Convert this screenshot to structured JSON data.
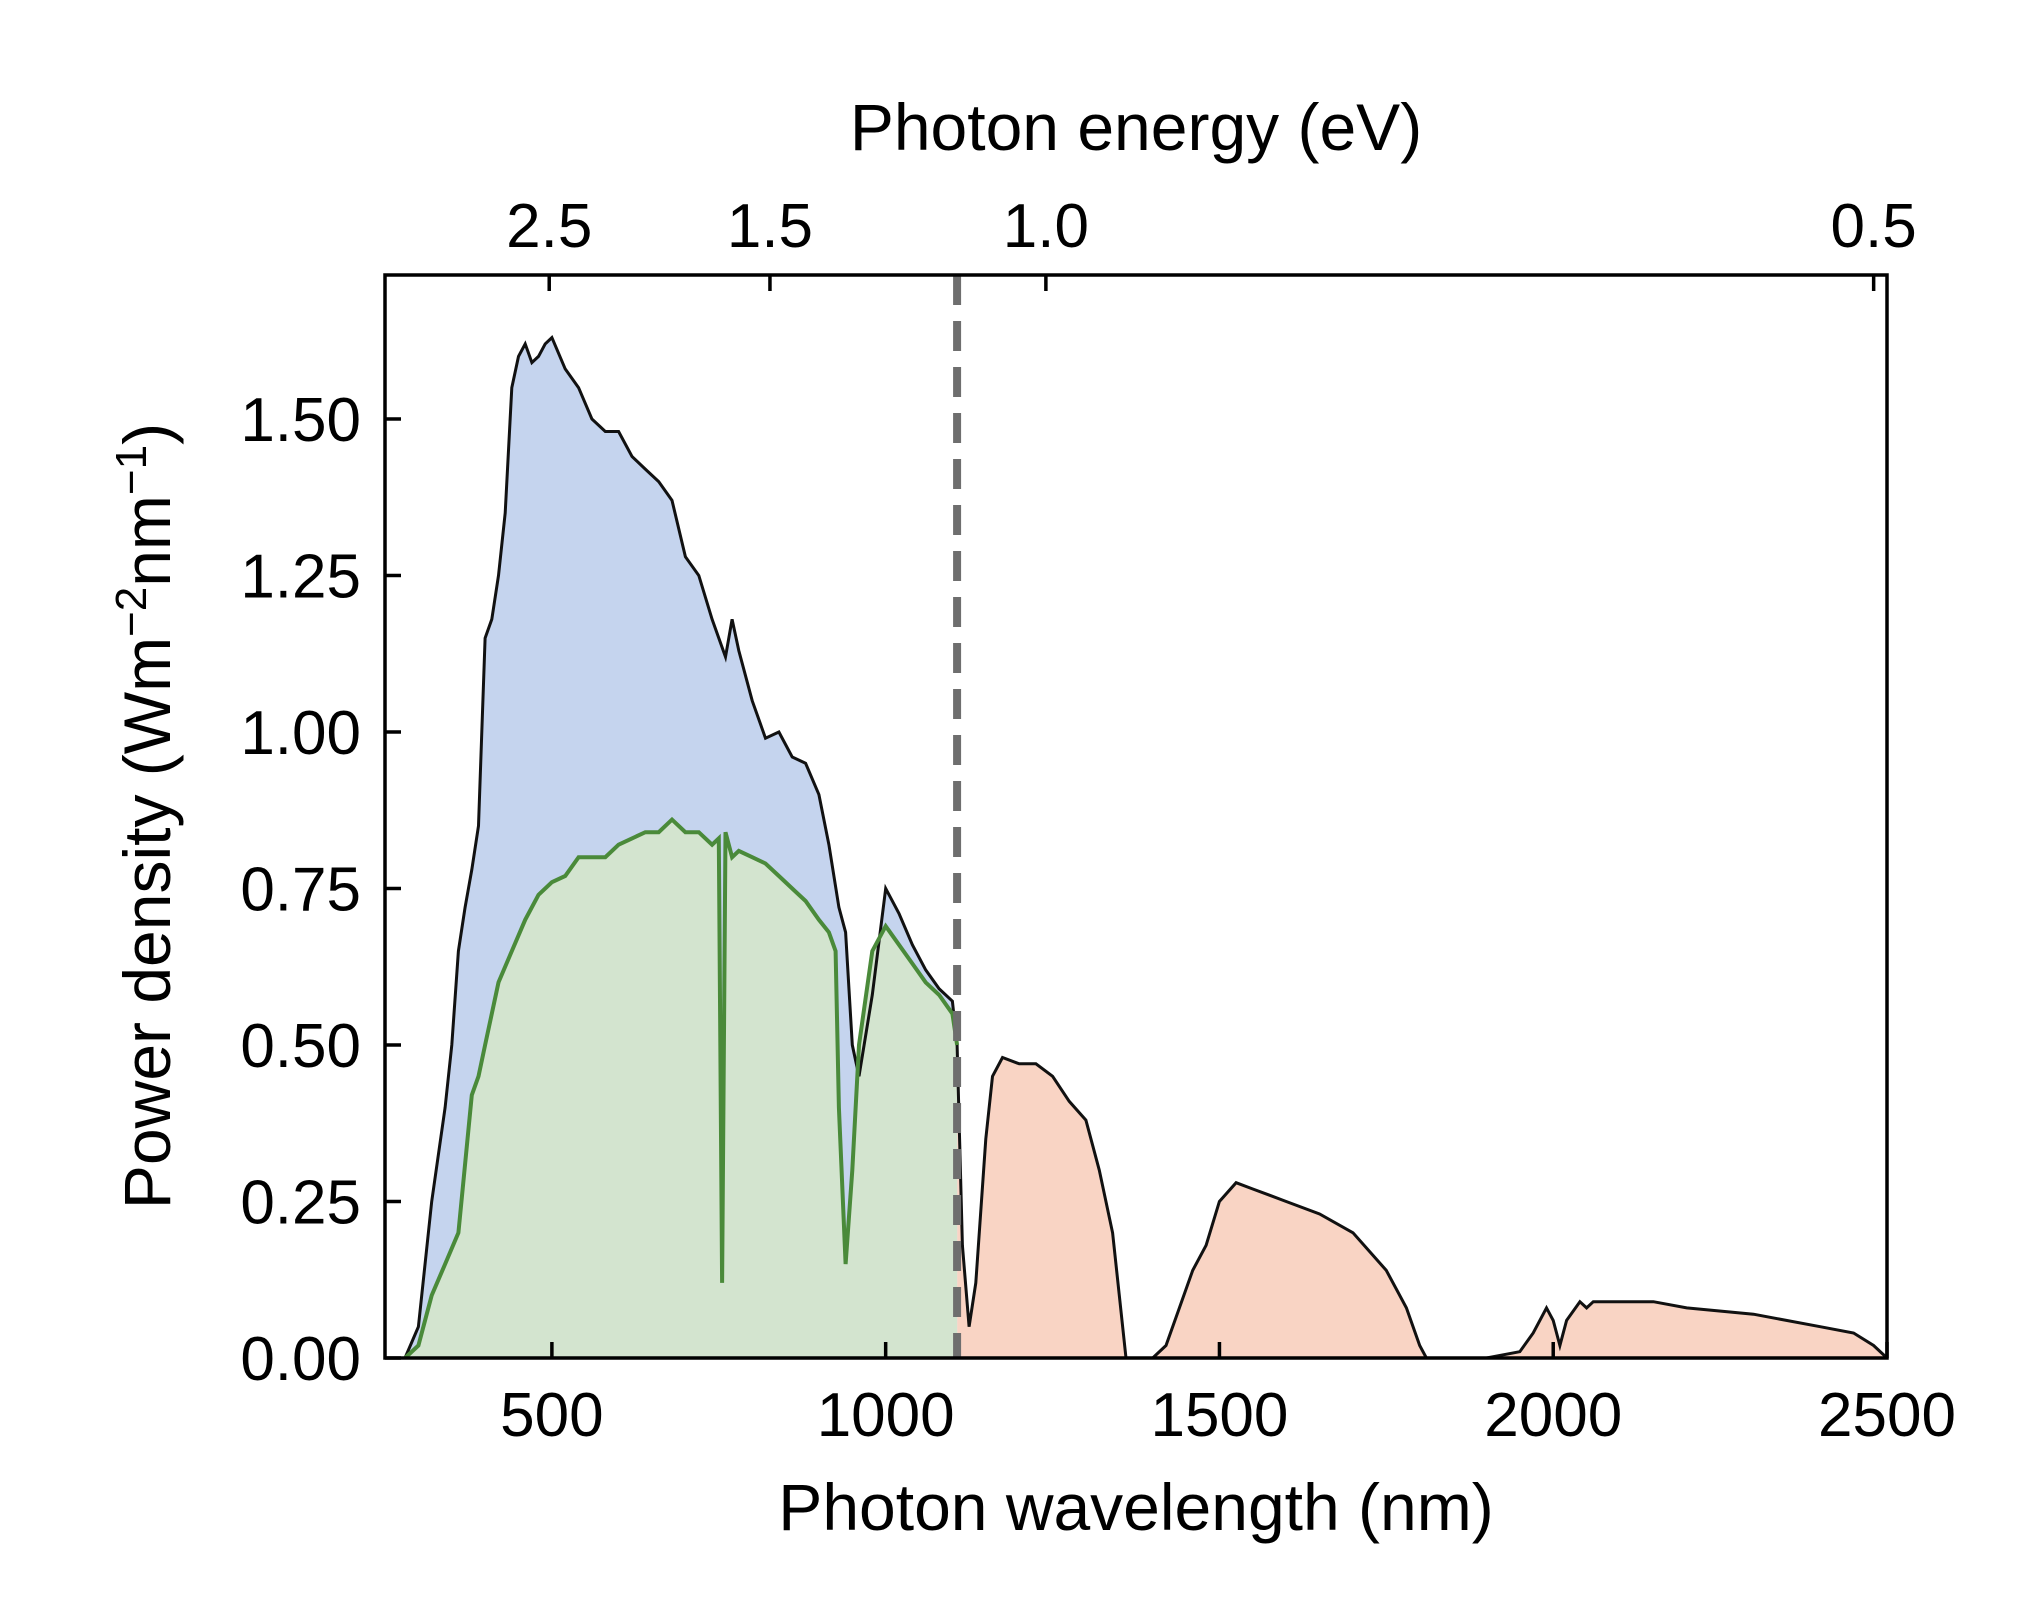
{
  "chart_data": {
    "type": "area",
    "xlabel": "Photon wavelength (nm)",
    "x2label": "Photon energy (eV)",
    "ylabel_parts": [
      "Power density (Wm",
      "−2",
      "nm",
      "−1",
      ")"
    ],
    "xlim": [
      250,
      2500
    ],
    "ylim": [
      0,
      1.73
    ],
    "x_ticks": [
      500,
      1000,
      1500,
      2000,
      2500
    ],
    "x_tick_labels": [
      "500",
      "1000",
      "1500",
      "2000",
      "2500"
    ],
    "y_ticks": [
      0,
      0.25,
      0.5,
      0.75,
      1.0,
      1.25,
      1.5
    ],
    "y_tick_labels": [
      "0.00",
      "0.25",
      "0.50",
      "0.75",
      "1.00",
      "1.25",
      "1.50"
    ],
    "top_ticks": [
      2.5,
      1.5,
      1.0,
      0.5
    ],
    "top_tick_labels": [
      "2.5",
      "1.5",
      "1.0",
      "0.5"
    ],
    "bandgap_wavelength": 1107,
    "colors": {
      "spectrum_line": "#111111",
      "usable_fill": "#c5d4ee",
      "absorbed_fill": "#d3e4cf",
      "absorbed_line": "#4a8a3a",
      "unusable_fill": "#f9d4c4",
      "bandgap_line": "#6e6e6e"
    },
    "series": [
      {
        "x": [
          280,
          300,
          320,
          340,
          350,
          360,
          370,
          380,
          390,
          400,
          410,
          420,
          430,
          440,
          450,
          460,
          470,
          480,
          490,
          500,
          520,
          540,
          560,
          580,
          600,
          620,
          640,
          660,
          680,
          700,
          720,
          740,
          750,
          760,
          770,
          780,
          800,
          820,
          840,
          860,
          880,
          900,
          915,
          930,
          940,
          950,
          960,
          980,
          1000,
          1020,
          1040,
          1060,
          1080,
          1100,
          1107,
          1115,
          1125,
          1135,
          1150,
          1160,
          1175,
          1200,
          1225,
          1250,
          1275,
          1300,
          1320,
          1340,
          1350,
          1360,
          1400,
          1420,
          1440,
          1460,
          1480,
          1500,
          1525,
          1550,
          1575,
          1600,
          1650,
          1700,
          1750,
          1780,
          1800,
          1810,
          1820,
          1900,
          1950,
          1970,
          1990,
          2000,
          2010,
          2020,
          2040,
          2050,
          2060,
          2100,
          2150,
          2200,
          2300,
          2400,
          2450,
          2480,
          2500
        ],
        "y": [
          0.0,
          0.05,
          0.25,
          0.4,
          0.5,
          0.65,
          0.72,
          0.78,
          0.85,
          1.15,
          1.18,
          1.25,
          1.35,
          1.55,
          1.6,
          1.62,
          1.59,
          1.6,
          1.62,
          1.63,
          1.58,
          1.55,
          1.5,
          1.48,
          1.48,
          1.44,
          1.42,
          1.4,
          1.37,
          1.28,
          1.25,
          1.18,
          1.15,
          1.12,
          1.18,
          1.13,
          1.05,
          0.99,
          1.0,
          0.96,
          0.95,
          0.9,
          0.82,
          0.72,
          0.68,
          0.5,
          0.45,
          0.58,
          0.75,
          0.71,
          0.66,
          0.62,
          0.59,
          0.57,
          0.5,
          0.18,
          0.05,
          0.12,
          0.35,
          0.45,
          0.48,
          0.47,
          0.47,
          0.45,
          0.41,
          0.38,
          0.3,
          0.2,
          0.1,
          0.0,
          0.0,
          0.02,
          0.08,
          0.14,
          0.18,
          0.25,
          0.28,
          0.27,
          0.26,
          0.25,
          0.23,
          0.2,
          0.14,
          0.08,
          0.02,
          0.0,
          0.0,
          0.0,
          0.01,
          0.04,
          0.08,
          0.06,
          0.02,
          0.06,
          0.09,
          0.08,
          0.09,
          0.09,
          0.09,
          0.08,
          0.07,
          0.05,
          0.04,
          0.02,
          0.0
        ]
      },
      {
        "x": [
          280,
          300,
          320,
          340,
          360,
          380,
          390,
          400,
          410,
          420,
          440,
          460,
          480,
          500,
          520,
          540,
          560,
          580,
          600,
          620,
          640,
          660,
          680,
          700,
          720,
          740,
          750,
          755,
          760,
          770,
          780,
          800,
          820,
          840,
          860,
          880,
          900,
          915,
          925,
          930,
          940,
          950,
          960,
          980,
          1000,
          1020,
          1040,
          1060,
          1080,
          1100,
          1107
        ],
        "y": [
          0.0,
          0.02,
          0.1,
          0.15,
          0.2,
          0.42,
          0.45,
          0.5,
          0.55,
          0.6,
          0.65,
          0.7,
          0.74,
          0.76,
          0.77,
          0.8,
          0.8,
          0.8,
          0.82,
          0.83,
          0.84,
          0.84,
          0.86,
          0.84,
          0.84,
          0.82,
          0.83,
          0.12,
          0.84,
          0.8,
          0.81,
          0.8,
          0.79,
          0.77,
          0.75,
          0.73,
          0.7,
          0.68,
          0.65,
          0.4,
          0.15,
          0.3,
          0.5,
          0.65,
          0.69,
          0.66,
          0.63,
          0.6,
          0.58,
          0.55,
          0.5
        ]
      }
    ]
  }
}
